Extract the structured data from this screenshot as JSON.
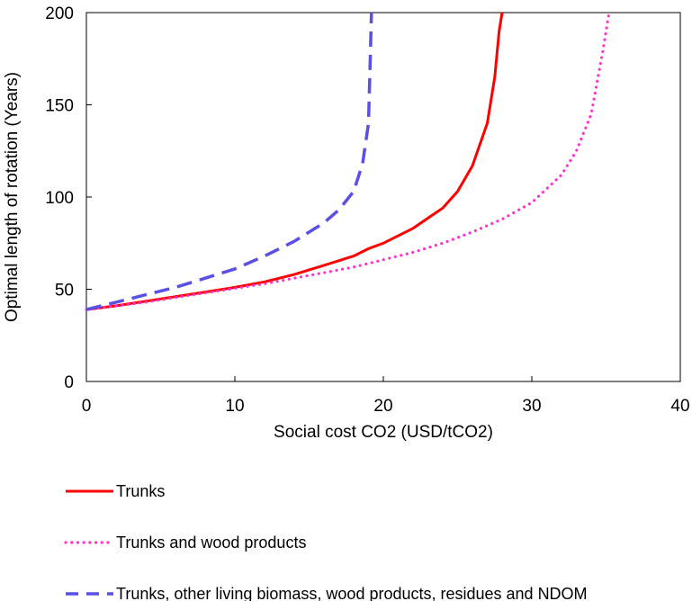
{
  "chart_data": {
    "type": "line",
    "title": "",
    "xlabel": "Social cost CO2 (USD/tCO2)",
    "ylabel": "Optimal length of rotation (Years)",
    "xlim": [
      0,
      40
    ],
    "ylim": [
      0,
      200
    ],
    "xticks": [
      0,
      10,
      20,
      30,
      40
    ],
    "yticks": [
      0,
      50,
      100,
      150,
      200
    ],
    "grid": false,
    "legend_position": "bottom",
    "series": [
      {
        "name": "Trunks",
        "color": "#ff0000",
        "style": "solid",
        "points": [
          [
            0,
            39
          ],
          [
            2,
            41
          ],
          [
            4,
            43.5
          ],
          [
            6,
            46
          ],
          [
            8,
            48.5
          ],
          [
            10,
            51
          ],
          [
            12,
            54
          ],
          [
            14,
            58
          ],
          [
            16,
            63
          ],
          [
            18,
            68
          ],
          [
            19,
            72
          ],
          [
            20,
            75
          ],
          [
            22,
            83
          ],
          [
            24,
            94
          ],
          [
            25,
            103
          ],
          [
            26,
            117
          ],
          [
            27,
            140
          ],
          [
            27.5,
            165
          ],
          [
            27.8,
            190
          ],
          [
            28,
            200
          ]
        ]
      },
      {
        "name": "Trunks and wood products",
        "color": "#ff33cc",
        "style": "dotted",
        "points": [
          [
            0,
            39
          ],
          [
            2,
            41
          ],
          [
            4,
            43
          ],
          [
            6,
            45.5
          ],
          [
            8,
            48
          ],
          [
            10,
            50.5
          ],
          [
            12,
            53
          ],
          [
            14,
            56
          ],
          [
            16,
            59
          ],
          [
            18,
            62
          ],
          [
            20,
            66
          ],
          [
            22,
            70
          ],
          [
            24,
            75
          ],
          [
            26,
            81
          ],
          [
            28,
            88
          ],
          [
            30,
            97
          ],
          [
            32,
            112
          ],
          [
            33,
            125
          ],
          [
            34,
            145
          ],
          [
            34.8,
            180
          ],
          [
            35.2,
            200
          ]
        ]
      },
      {
        "name": "Trunks, other living biomass, wood products, residues and NDOM",
        "color": "#5a50e6",
        "style": "dashed",
        "points": [
          [
            0,
            39
          ],
          [
            2,
            43
          ],
          [
            4,
            47
          ],
          [
            6,
            51
          ],
          [
            8,
            56
          ],
          [
            10,
            61
          ],
          [
            12,
            68
          ],
          [
            14,
            76
          ],
          [
            16,
            86
          ],
          [
            17,
            93
          ],
          [
            18,
            103
          ],
          [
            18.6,
            118
          ],
          [
            19,
            140
          ],
          [
            19.1,
            170
          ],
          [
            19.2,
            200
          ]
        ]
      }
    ]
  }
}
